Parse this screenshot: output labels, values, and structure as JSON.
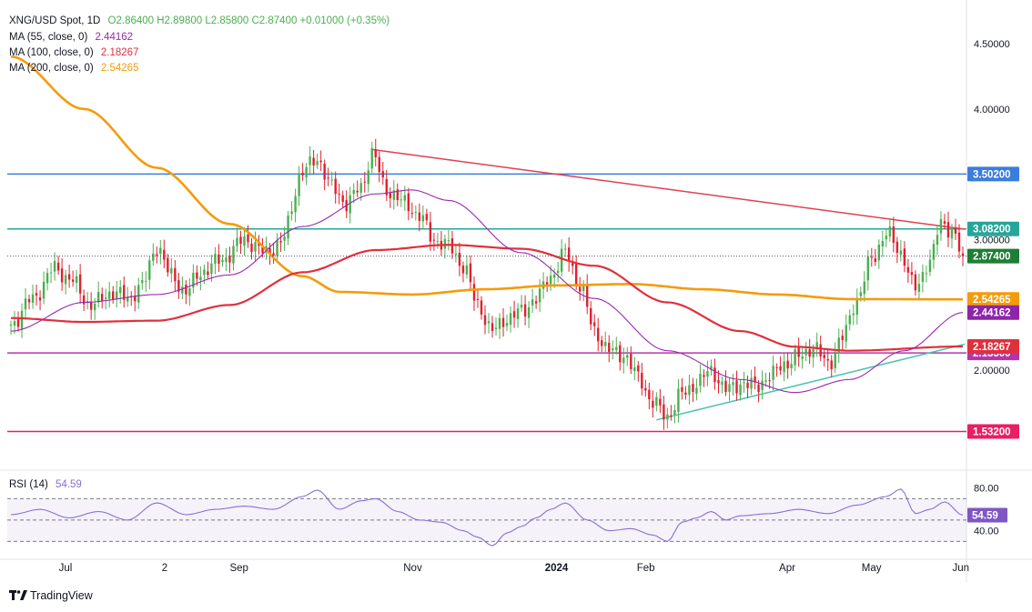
{
  "header": {
    "symbol": "XNG/USD Spot, 1D",
    "ohlc": "O2.86400 H2.89800 L2.85800 C2.87400 +0.01000 (+0.35%)",
    "ma55_label": "MA (55, close, 0)",
    "ma55_value": "2.44162",
    "ma100_label": "MA (100, close, 0)",
    "ma100_value": "2.18267",
    "ma200_label": "MA (200, close, 0)",
    "ma200_value": "2.54265"
  },
  "colors": {
    "bull": "#4caf50",
    "bear": "#e0202f",
    "ma55": "#9c27b0",
    "ma100": "#e0303c",
    "ma200": "#f49b0b",
    "resistance_blue": "#3b7ddd",
    "level_teal": "#26a69a",
    "level_magenta": "#b734a6",
    "level_pink": "#e91e63",
    "trend_red": "#e04050",
    "trend_teal": "#4fc3b7",
    "rsi_line": "#8a6fd1"
  },
  "chart_data": {
    "type": "candlestick",
    "title": "XNG/USD Spot, 1D",
    "ylim": [
      1.25,
      4.75
    ],
    "y_ticks": [
      "4.50000",
      "4.00000",
      "3.00000",
      "2.00000"
    ],
    "x_ticks": [
      "Jul",
      "2",
      "Sep",
      "Nov",
      "2024",
      "Feb",
      "Apr",
      "May",
      "Jun"
    ],
    "last_close": 2.874,
    "price_path": [
      [
        0,
        2.35
      ],
      [
        6,
        2.55
      ],
      [
        12,
        2.78
      ],
      [
        16,
        2.7
      ],
      [
        22,
        2.5
      ],
      [
        28,
        2.6
      ],
      [
        32,
        2.55
      ],
      [
        36,
        2.65
      ],
      [
        40,
        2.95
      ],
      [
        44,
        2.72
      ],
      [
        48,
        2.6
      ],
      [
        52,
        2.75
      ],
      [
        58,
        2.85
      ],
      [
        64,
        3.0
      ],
      [
        70,
        2.9
      ],
      [
        74,
        2.98
      ],
      [
        80,
        3.52
      ],
      [
        84,
        3.62
      ],
      [
        88,
        3.4
      ],
      [
        92,
        3.28
      ],
      [
        96,
        3.4
      ],
      [
        99,
        3.66
      ],
      [
        103,
        3.38
      ],
      [
        108,
        3.28
      ],
      [
        112,
        3.18
      ],
      [
        116,
        3.0
      ],
      [
        120,
        2.95
      ],
      [
        124,
        2.8
      ],
      [
        128,
        2.5
      ],
      [
        132,
        2.3
      ],
      [
        136,
        2.4
      ],
      [
        140,
        2.45
      ],
      [
        144,
        2.55
      ],
      [
        148,
        2.72
      ],
      [
        152,
        2.9
      ],
      [
        156,
        2.65
      ],
      [
        160,
        2.3
      ],
      [
        164,
        2.15
      ],
      [
        168,
        2.12
      ],
      [
        172,
        1.95
      ],
      [
        176,
        1.75
      ],
      [
        180,
        1.65
      ],
      [
        184,
        1.82
      ],
      [
        188,
        1.9
      ],
      [
        192,
        2.0
      ],
      [
        196,
        1.85
      ],
      [
        200,
        1.9
      ],
      [
        204,
        1.88
      ],
      [
        208,
        1.95
      ],
      [
        212,
        2.05
      ],
      [
        216,
        2.1
      ],
      [
        220,
        2.18
      ],
      [
        224,
        2.05
      ],
      [
        228,
        2.25
      ],
      [
        232,
        2.55
      ],
      [
        236,
        2.85
      ],
      [
        240,
        3.05
      ],
      [
        244,
        2.9
      ],
      [
        248,
        2.62
      ],
      [
        252,
        2.85
      ],
      [
        255,
        3.12
      ],
      [
        258,
        3.08
      ],
      [
        261,
        2.87
      ]
    ],
    "ma200_path": [
      [
        0,
        4.4
      ],
      [
        20,
        4.0
      ],
      [
        40,
        3.55
      ],
      [
        60,
        3.12
      ],
      [
        80,
        2.72
      ],
      [
        90,
        2.6
      ],
      [
        110,
        2.58
      ],
      [
        130,
        2.62
      ],
      [
        150,
        2.65
      ],
      [
        170,
        2.66
      ],
      [
        190,
        2.62
      ],
      [
        210,
        2.58
      ],
      [
        230,
        2.545
      ],
      [
        261,
        2.54265
      ]
    ],
    "ma100_path": [
      [
        0,
        2.4
      ],
      [
        20,
        2.37
      ],
      [
        40,
        2.38
      ],
      [
        60,
        2.5
      ],
      [
        80,
        2.75
      ],
      [
        100,
        2.92
      ],
      [
        120,
        2.96
      ],
      [
        140,
        2.93
      ],
      [
        160,
        2.8
      ],
      [
        180,
        2.52
      ],
      [
        200,
        2.3
      ],
      [
        215,
        2.18
      ],
      [
        230,
        2.15
      ],
      [
        261,
        2.18267
      ]
    ],
    "ma55_path": [
      [
        0,
        2.3
      ],
      [
        20,
        2.52
      ],
      [
        40,
        2.58
      ],
      [
        60,
        2.73
      ],
      [
        80,
        3.1
      ],
      [
        100,
        3.35
      ],
      [
        110,
        3.38
      ],
      [
        120,
        3.3
      ],
      [
        140,
        2.9
      ],
      [
        160,
        2.55
      ],
      [
        180,
        2.15
      ],
      [
        200,
        1.93
      ],
      [
        215,
        1.83
      ],
      [
        230,
        1.93
      ],
      [
        245,
        2.15
      ],
      [
        261,
        2.44162
      ]
    ],
    "levels": [
      {
        "value": 3.502,
        "label": "3.50200",
        "color": "#3b7ddd"
      },
      {
        "value": 3.082,
        "label": "3.08200",
        "color": "#26a69a"
      },
      {
        "value": 2.133,
        "label": "2.13300",
        "color": "#b734a6"
      },
      {
        "value": 1.532,
        "label": "1.53200",
        "color": "#e91e63"
      }
    ],
    "trendlines": [
      {
        "from": [
          99,
          3.69
        ],
        "to": [
          261,
          3.08
        ],
        "color": "#e04050"
      },
      {
        "from": [
          177,
          1.62
        ],
        "to": [
          261,
          2.2
        ],
        "color": "#4fc3b7"
      }
    ],
    "axis_tags": [
      {
        "value": 2.874,
        "label": "2.87400",
        "color": "#1e7e34"
      },
      {
        "value": 2.54265,
        "label": "2.54265",
        "color": "#f49b0b"
      },
      {
        "value": 2.44162,
        "label": "2.44162",
        "color": "#8e24aa"
      },
      {
        "value": 2.18267,
        "label": "2.18267",
        "color": "#e0303c"
      }
    ],
    "rsi": {
      "label": "RSI (14)",
      "value": "54.59",
      "ylim": [
        15,
        95
      ],
      "ticks": [
        "80.00",
        "40.00"
      ],
      "bands": [
        70,
        50,
        30
      ],
      "path": [
        [
          0,
          55
        ],
        [
          8,
          60
        ],
        [
          16,
          52
        ],
        [
          24,
          58
        ],
        [
          32,
          50
        ],
        [
          40,
          66
        ],
        [
          48,
          55
        ],
        [
          56,
          60
        ],
        [
          64,
          63
        ],
        [
          72,
          60
        ],
        [
          80,
          72
        ],
        [
          84,
          78
        ],
        [
          90,
          60
        ],
        [
          96,
          68
        ],
        [
          100,
          70
        ],
        [
          106,
          58
        ],
        [
          112,
          50
        ],
        [
          118,
          48
        ],
        [
          124,
          40
        ],
        [
          128,
          34
        ],
        [
          132,
          26
        ],
        [
          136,
          38
        ],
        [
          140,
          44
        ],
        [
          144,
          52
        ],
        [
          148,
          60
        ],
        [
          152,
          66
        ],
        [
          158,
          50
        ],
        [
          164,
          40
        ],
        [
          170,
          42
        ],
        [
          176,
          36
        ],
        [
          180,
          30
        ],
        [
          184,
          48
        ],
        [
          188,
          52
        ],
        [
          192,
          58
        ],
        [
          196,
          50
        ],
        [
          200,
          54
        ],
        [
          208,
          56
        ],
        [
          216,
          60
        ],
        [
          224,
          56
        ],
        [
          232,
          64
        ],
        [
          240,
          72
        ],
        [
          244,
          79
        ],
        [
          248,
          56
        ],
        [
          252,
          60
        ],
        [
          256,
          67
        ],
        [
          261,
          54.59
        ]
      ]
    }
  },
  "footer": {
    "brand": "TradingView"
  }
}
